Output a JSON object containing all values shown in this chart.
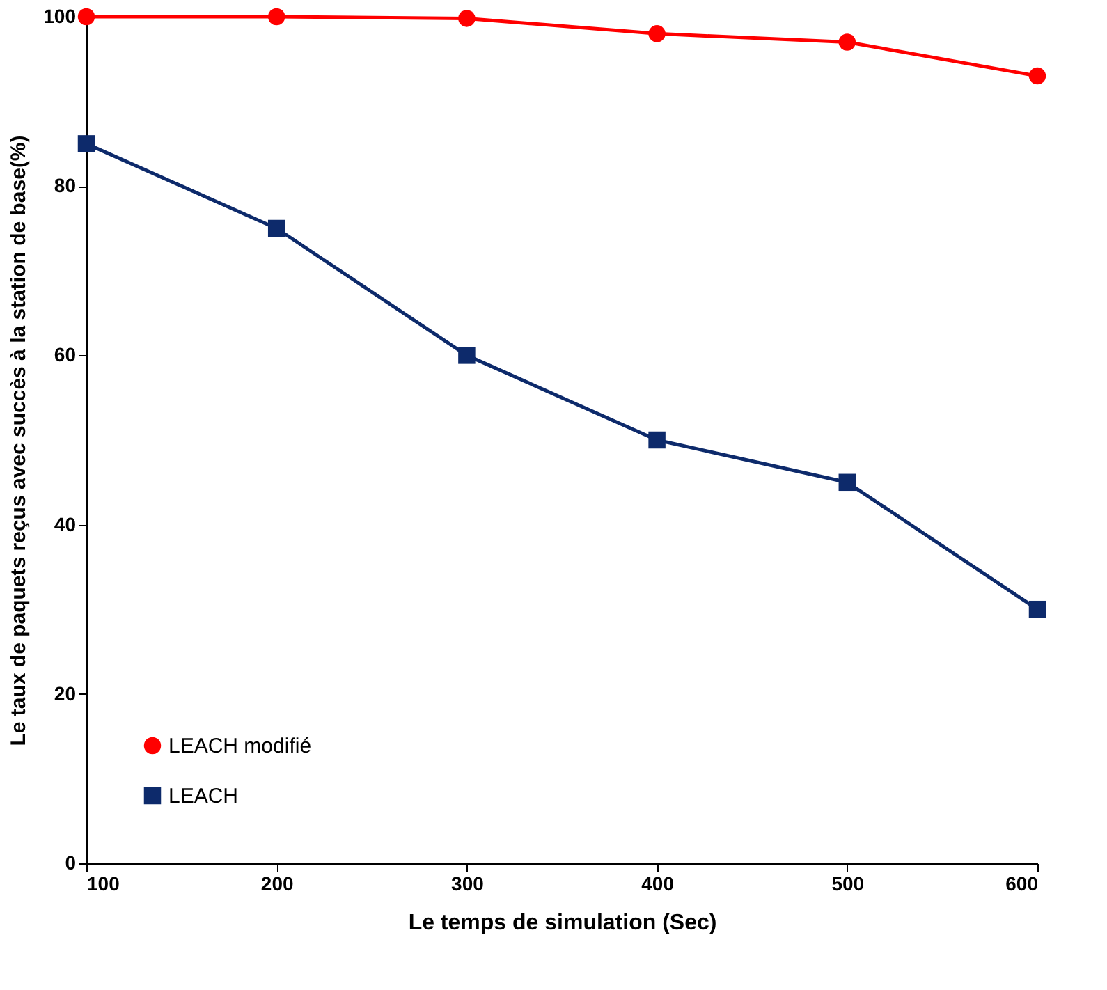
{
  "chart_data": {
    "type": "line",
    "xlabel": "Le temps de simulation  (Sec)",
    "ylabel": "Le taux de paquets reçus avec succès à la station de base(%)",
    "x": [
      100,
      200,
      300,
      400,
      500,
      600
    ],
    "series": [
      {
        "name": "LEACH modifié",
        "color": "#ff0000",
        "marker": "circle",
        "values": [
          100,
          100,
          99.8,
          98,
          97,
          93
        ]
      },
      {
        "name": "LEACH",
        "color": "#0d2a6b",
        "marker": "square",
        "values": [
          85,
          75,
          60,
          50,
          45,
          30
        ]
      }
    ],
    "xlim": [
      100,
      600
    ],
    "xticks": [
      100,
      200,
      300,
      400,
      500,
      600
    ],
    "ylim": [
      0,
      100
    ],
    "yticks": [
      0,
      20,
      40,
      60,
      80,
      100
    ],
    "grid": false,
    "legend": "bottom left",
    "line_style": "solid"
  }
}
